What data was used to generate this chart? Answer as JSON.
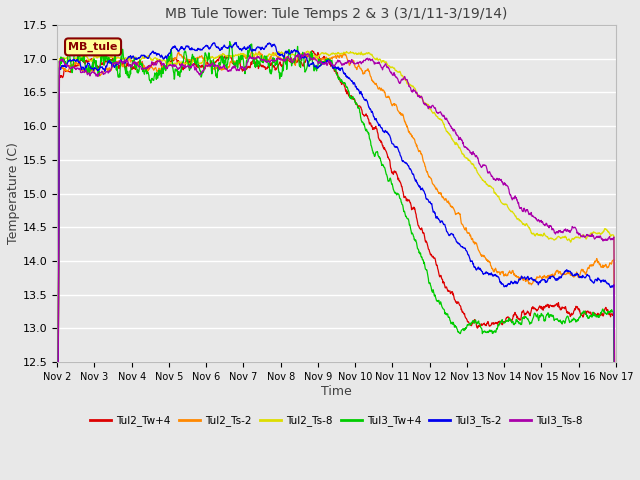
{
  "title": "MB Tule Tower: Tule Temps 2 & 3 (3/1/11-3/19/14)",
  "xlabel": "Time",
  "ylabel": "Temperature (C)",
  "ylim": [
    12.5,
    17.5
  ],
  "yticks": [
    12.5,
    13.0,
    13.5,
    14.0,
    14.5,
    15.0,
    15.5,
    16.0,
    16.5,
    17.0,
    17.5
  ],
  "xtick_labels": [
    "Nov 2",
    "Nov 3",
    "Nov 4",
    "Nov 5",
    "Nov 6",
    "Nov 7",
    "Nov 8",
    "Nov 9",
    "Nov 10",
    "Nov 11",
    "Nov 12",
    "Nov 13",
    "Nov 14",
    "Nov 15",
    "Nov 16",
    "Nov 17"
  ],
  "legend_label": "MB_tule",
  "legend_border_color": "#880000",
  "legend_text_color": "#880000",
  "lines": [
    {
      "name": "Tul2_Tw+4",
      "color": "#dd0000"
    },
    {
      "name": "Tul2_Ts-2",
      "color": "#ff8800"
    },
    {
      "name": "Tul2_Ts-8",
      "color": "#dddd00"
    },
    {
      "name": "Tul3_Tw+4",
      "color": "#00cc00"
    },
    {
      "name": "Tul3_Ts-2",
      "color": "#0000ee"
    },
    {
      "name": "Tul3_Ts-8",
      "color": "#aa00aa"
    }
  ],
  "background_color": "#e8e8e8",
  "plot_bg_color": "#e8e8e8",
  "grid_color": "#ffffff",
  "figsize": [
    6.4,
    4.8
  ],
  "dpi": 100
}
